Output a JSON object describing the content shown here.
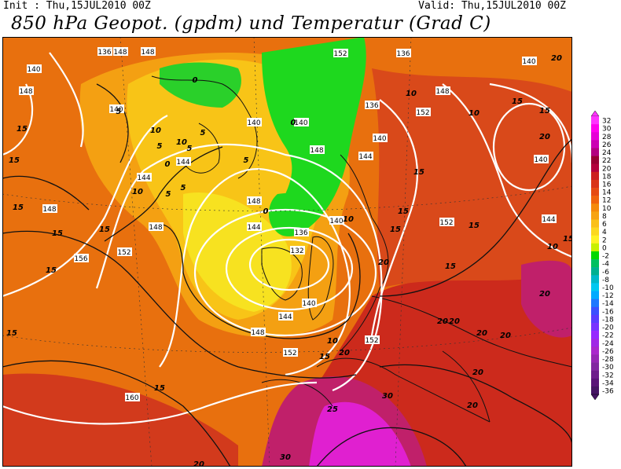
{
  "header": {
    "init": "Init : Thu,15JUL2010 00Z",
    "valid": "Valid: Thu,15JUL2010 00Z",
    "title": "850 hPa Geopot. (gpdm) und Temperatur (Grad C)"
  },
  "colorbar": {
    "labels": [
      "32",
      "30",
      "28",
      "26",
      "24",
      "22",
      "20",
      "18",
      "16",
      "14",
      "12",
      "10",
      "8",
      "6",
      "4",
      "2",
      "0",
      "-2",
      "-4",
      "-6",
      "-8",
      "-10",
      "-12",
      "-14",
      "-16",
      "-18",
      "-20",
      "-22",
      "-24",
      "-26",
      "-28",
      "-30",
      "-32",
      "-34",
      "-36"
    ],
    "colors": [
      "#ff33ff",
      "#ff00ee",
      "#e600d6",
      "#cc00b3",
      "#b30080",
      "#990033",
      "#b3003c",
      "#cc1f1f",
      "#d93518",
      "#e64b12",
      "#f0640c",
      "#f58a0a",
      "#f7a312",
      "#fac018",
      "#fcd81f",
      "#fff224",
      "#c8f000",
      "#00d800",
      "#00c060",
      "#00b090",
      "#00b8c8",
      "#00c8f0",
      "#00aaff",
      "#1e78ff",
      "#3c50ff",
      "#5a3cff",
      "#7832ff",
      "#9628ff",
      "#a028e6",
      "#aa28cc",
      "#9628b4",
      "#8228a0",
      "#6e1e8c",
      "#5a1478",
      "#461464"
    ]
  },
  "geopotential_labels": [
    "132",
    "136",
    "136",
    "136",
    "136",
    "140",
    "140",
    "140",
    "140",
    "140",
    "140",
    "140",
    "140",
    "140",
    "144",
    "144",
    "144",
    "144",
    "144",
    "144",
    "148",
    "148",
    "148",
    "148",
    "148",
    "148",
    "148",
    "148",
    "148",
    "152",
    "152",
    "152",
    "152",
    "152",
    "152",
    "156",
    "160"
  ],
  "temperature_labels": [
    "0",
    "0",
    "0",
    "0",
    "5",
    "5",
    "5",
    "5",
    "5",
    "5",
    "5",
    "10",
    "10",
    "10",
    "10",
    "10",
    "10",
    "10",
    "10",
    "15",
    "15",
    "15",
    "15",
    "15",
    "15",
    "15",
    "15",
    "15",
    "15",
    "15",
    "15",
    "15",
    "15",
    "15",
    "15",
    "15",
    "20",
    "20",
    "20",
    "20",
    "20",
    "20",
    "20",
    "20",
    "20",
    "20",
    "20",
    "20",
    "25",
    "30",
    "30"
  ]
}
